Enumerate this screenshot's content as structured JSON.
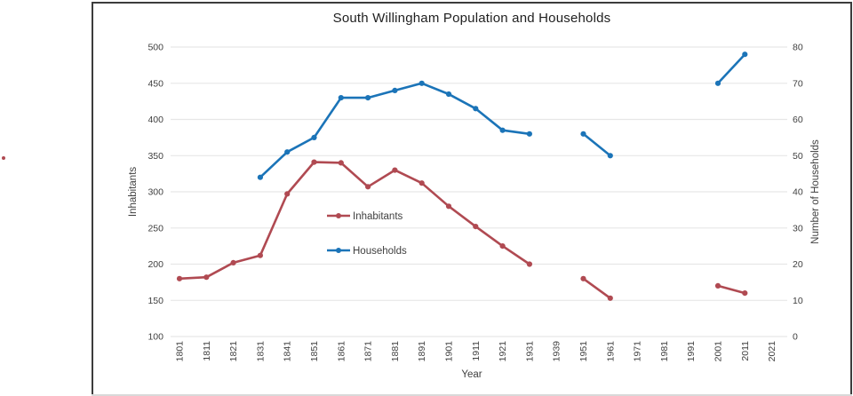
{
  "window": {
    "title": "South Willingham Population and Households"
  },
  "chart_data": {
    "type": "line",
    "title": "South Willingham Population and Households",
    "xlabel": "Year",
    "ylabel_left": "Inhabitants",
    "ylabel_right": "Number of Households",
    "grid": true,
    "legend_position": "inside-center-left",
    "categories": [
      "1801",
      "1811",
      "1821",
      "1831",
      "1841",
      "1851",
      "1861",
      "1871",
      "1881",
      "1891",
      "1901",
      "1911",
      "1921",
      "1931",
      "1939",
      "1951",
      "1961",
      "1971",
      "1981",
      "1991",
      "2001",
      "2011",
      "2021"
    ],
    "series": [
      {
        "name": "Inhabitants",
        "axis": "left",
        "color": "#b04a52",
        "values": [
          180,
          182,
          202,
          212,
          297,
          341,
          340,
          307,
          330,
          312,
          280,
          252,
          225,
          200,
          null,
          180,
          153,
          null,
          null,
          null,
          170,
          160,
          null
        ]
      },
      {
        "name": "Households",
        "axis": "right",
        "color": "#1b74b8",
        "values": [
          null,
          null,
          null,
          44,
          51,
          55,
          66,
          66,
          68,
          70,
          67,
          63,
          57,
          56,
          null,
          56,
          50,
          null,
          null,
          null,
          70,
          78,
          null
        ]
      }
    ],
    "left_axis": {
      "min": 100,
      "max": 500,
      "step": 50,
      "ticks": [
        "100",
        "150",
        "200",
        "250",
        "300",
        "350",
        "400",
        "450",
        "500"
      ]
    },
    "right_axis": {
      "min": 0,
      "max": 80,
      "step": 10,
      "ticks": [
        "0",
        "10",
        "20",
        "30",
        "40",
        "50",
        "60",
        "70",
        "80"
      ]
    },
    "legend": {
      "items": [
        {
          "label": "Inhabitants"
        },
        {
          "label": "Households"
        }
      ]
    },
    "style": {
      "grid_color": "#e7e7e7",
      "text_color": "#3f3f3f",
      "frame_border": "#3c3c3c",
      "background": "#ffffff"
    }
  }
}
